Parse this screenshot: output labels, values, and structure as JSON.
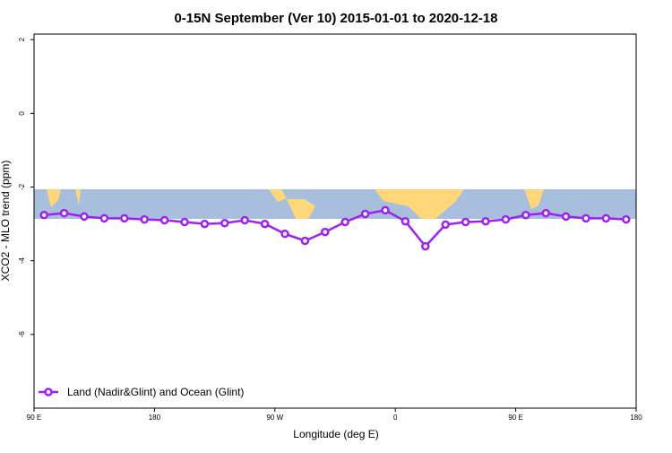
{
  "chart_data": {
    "type": "line",
    "title": "0-15N September (Ver 10)   2015-01-01 to 2020-12-18",
    "x_label": "Longitude (deg E)",
    "y_label": "XCO2 - MLO trend (ppm)",
    "x": [
      97.5,
      112.5,
      127.5,
      142.5,
      157.5,
      172.5,
      187.5,
      202.5,
      217.5,
      232.5,
      247.5,
      262.5,
      277.5,
      292.5,
      307.5,
      322.5,
      337.5,
      352.5,
      367.5,
      382.5,
      397.5,
      412.5,
      427.5,
      442.5,
      457.5,
      472.5,
      487.5,
      502.5,
      517.5,
      532.5
    ],
    "series": [
      {
        "name": "Land (Nadir&Glint) and Ocean (Glint)",
        "color": "#a020f0",
        "values": [
          -2.76,
          -2.71,
          -2.8,
          -2.85,
          -2.85,
          -2.88,
          -2.9,
          -2.95,
          -3.0,
          -2.98,
          -2.9,
          -3.0,
          -3.27,
          -3.46,
          -3.22,
          -2.95,
          -2.73,
          -2.63,
          -2.93,
          -3.61,
          -3.02,
          -2.95,
          -2.93,
          -2.88,
          -2.76,
          -2.71,
          -2.8,
          -2.85,
          -2.85,
          -2.88
        ]
      }
    ],
    "xlim": [
      90,
      540
    ],
    "xticks": [
      {
        "value": 90,
        "label": "90 E"
      },
      180,
      {
        "value": 270,
        "label": "90 W"
      },
      {
        "value": 360,
        "label": "0"
      },
      {
        "value": 450,
        "label": "90 E"
      },
      {
        "value": 540,
        "label": "180"
      }
    ],
    "ylim": [
      -8,
      2.15
    ],
    "yticks": [
      -6,
      -4,
      -2,
      0,
      2
    ],
    "legend": "bottom-left"
  }
}
